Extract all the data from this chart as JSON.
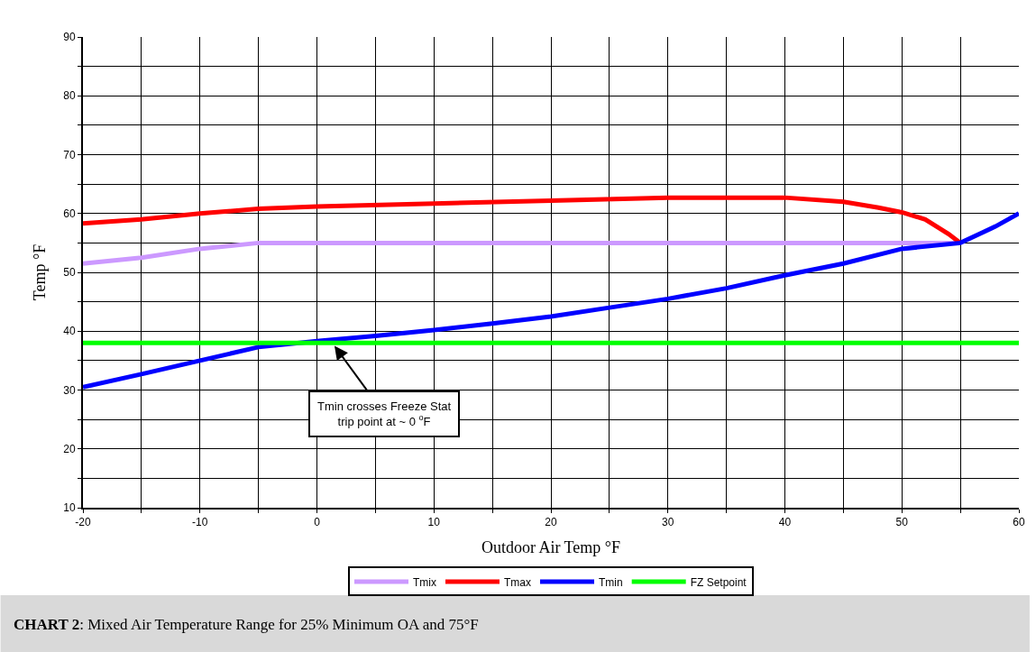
{
  "chart_data": {
    "type": "line",
    "xlabel": "Outdoor Air Temp °F",
    "ylabel": "Temp °F",
    "xlim": [
      -20,
      60
    ],
    "ylim": [
      10,
      90
    ],
    "xticks": [
      -20,
      {
        "value": -15,
        "label": null
      },
      -10,
      {
        "value": -5,
        "label": null
      },
      0,
      {
        "value": 5,
        "label": null
      },
      10,
      {
        "value": 15,
        "label": null
      },
      20,
      {
        "value": 25,
        "label": null
      },
      30,
      {
        "value": 35,
        "label": null
      },
      40,
      {
        "value": 45,
        "label": null
      },
      50,
      {
        "value": 55,
        "label": null
      },
      60
    ],
    "yticks": [
      10,
      {
        "value": 15,
        "label": null
      },
      20,
      {
        "value": 25,
        "label": null
      },
      30,
      {
        "value": 35,
        "label": null
      },
      40,
      {
        "value": 45,
        "label": null
      },
      50,
      {
        "value": 55,
        "label": null
      },
      60,
      {
        "value": 65,
        "label": null
      },
      70,
      {
        "value": 75,
        "label": null
      },
      80,
      {
        "value": 85,
        "label": null
      },
      90
    ],
    "grid": true,
    "legend": "bottom",
    "marker": "none",
    "line_style": "solid",
    "series": [
      {
        "name": "Tmix",
        "color": "#cc99ff",
        "x": [
          -20,
          -15,
          -10,
          -5,
          0,
          10,
          20,
          30,
          40,
          50,
          55
        ],
        "values": [
          51.5,
          52.5,
          54,
          55,
          55,
          55,
          55,
          55,
          55,
          55,
          55
        ]
      },
      {
        "name": "Tmax",
        "color": "#ff0000",
        "x": [
          -20,
          -15,
          -10,
          -5,
          0,
          10,
          20,
          30,
          40,
          45,
          48,
          50,
          52,
          54,
          55
        ],
        "values": [
          58.3,
          59,
          60,
          60.8,
          61.2,
          61.7,
          62.2,
          62.7,
          62.7,
          62,
          61,
          60.2,
          59,
          56.5,
          55
        ]
      },
      {
        "name": "Tmin",
        "color": "#0000ff",
        "x": [
          -20,
          -15,
          -10,
          -5,
          0,
          5,
          10,
          15,
          20,
          25,
          30,
          35,
          40,
          45,
          50,
          55,
          58,
          60
        ],
        "values": [
          30.5,
          32.7,
          35,
          37.3,
          38.3,
          39.2,
          40.2,
          41.3,
          42.5,
          44,
          45.5,
          47.3,
          49.5,
          51.5,
          54,
          55,
          57.8,
          60
        ]
      },
      {
        "name": "FZ Setpoint",
        "color": "#00ff00",
        "x": [
          -20,
          60
        ],
        "values": [
          38,
          38
        ]
      }
    ],
    "annotations": [
      {
        "text": "Tmin crosses Freeze Stat\ntrip point at ~ 0 $^{o}$F",
        "x": 1.5,
        "y": 37.5
      },
      "CHART 2: Mixed Air Temperature Range for 25% Minimum OA and 75°F"
    ]
  }
}
